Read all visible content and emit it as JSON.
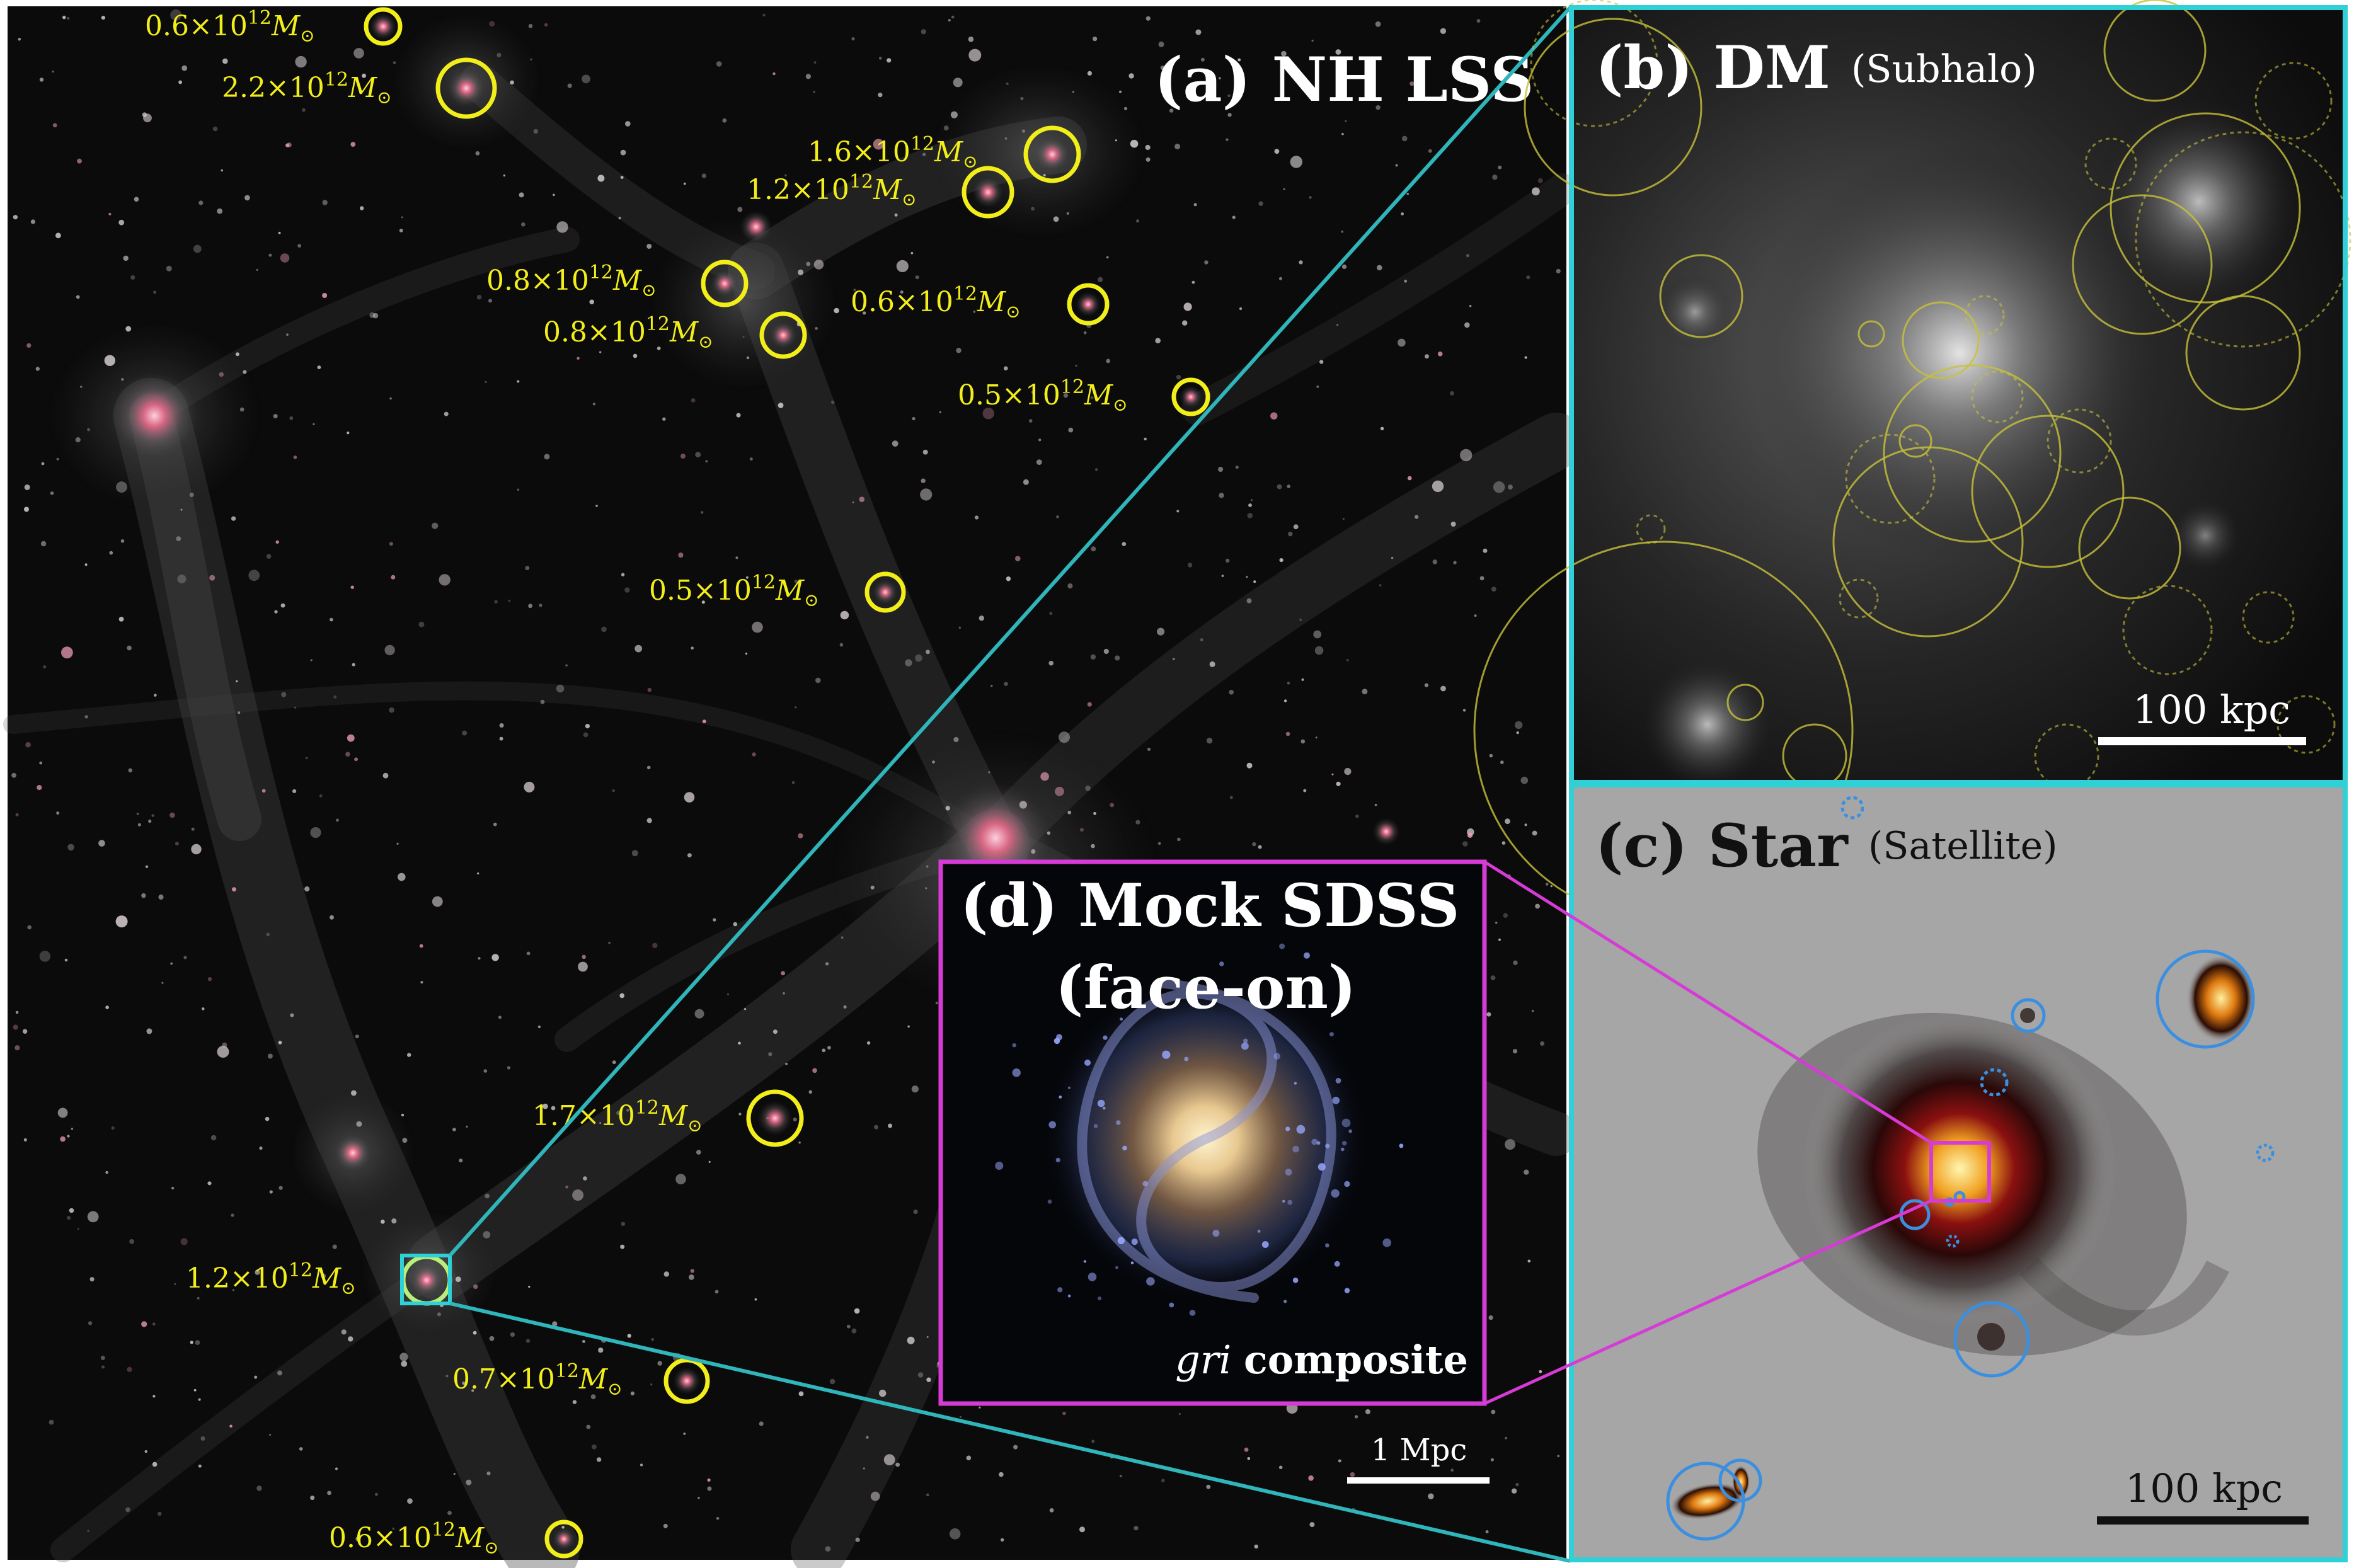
{
  "panels": {
    "a": {
      "title": "(a) NH LSS",
      "scale_label": "1 Mpc"
    },
    "b": {
      "title": "(b) DM",
      "subtitle": "(Subhalo)",
      "scale_label": "100 kpc"
    },
    "c": {
      "title": "(c) Star",
      "subtitle": "(Satellite)",
      "scale_label": "100 kpc"
    },
    "d": {
      "title_line1": "(d) Mock SDSS",
      "title_line2": "(face-on)",
      "caption_italic": "gri",
      "caption_bold": "composite"
    }
  },
  "halo_labels": [
    {
      "coef": "0.6×10",
      "exp": "12",
      "unit": "M",
      "sun": "⊙"
    },
    {
      "coef": "2.2×10",
      "exp": "12",
      "unit": "M",
      "sun": "⊙"
    },
    {
      "coef": "1.6×10",
      "exp": "12",
      "unit": "M",
      "sun": "⊙"
    },
    {
      "coef": "1.2×10",
      "exp": "12",
      "unit": "M",
      "sun": "⊙"
    },
    {
      "coef": "0.8×10",
      "exp": "12",
      "unit": "M",
      "sun": "⊙"
    },
    {
      "coef": "0.8×10",
      "exp": "12",
      "unit": "M",
      "sun": "⊙"
    },
    {
      "coef": "0.6×10",
      "exp": "12",
      "unit": "M",
      "sun": "⊙"
    },
    {
      "coef": "0.5×10",
      "exp": "12",
      "unit": "M",
      "sun": "⊙"
    },
    {
      "coef": "0.5×10",
      "exp": "12",
      "unit": "M",
      "sun": "⊙"
    },
    {
      "coef": "1.7×10",
      "exp": "12",
      "unit": "M",
      "sun": "⊙"
    },
    {
      "coef": "1.2×10",
      "exp": "12",
      "unit": "M",
      "sun": "⊙"
    },
    {
      "coef": "0.7×10",
      "exp": "12",
      "unit": "M",
      "sun": "⊙"
    },
    {
      "coef": "0.6×10",
      "exp": "12",
      "unit": "M",
      "sun": "⊙"
    }
  ],
  "colors": {
    "halo_marker": "#f2ee1a",
    "zoom_dm": "#2fd0d6",
    "zoom_sdss": "#d63bd6",
    "satellite_marker": "#3a8fe0",
    "star_panel_bg": "#a6a6a6"
  }
}
